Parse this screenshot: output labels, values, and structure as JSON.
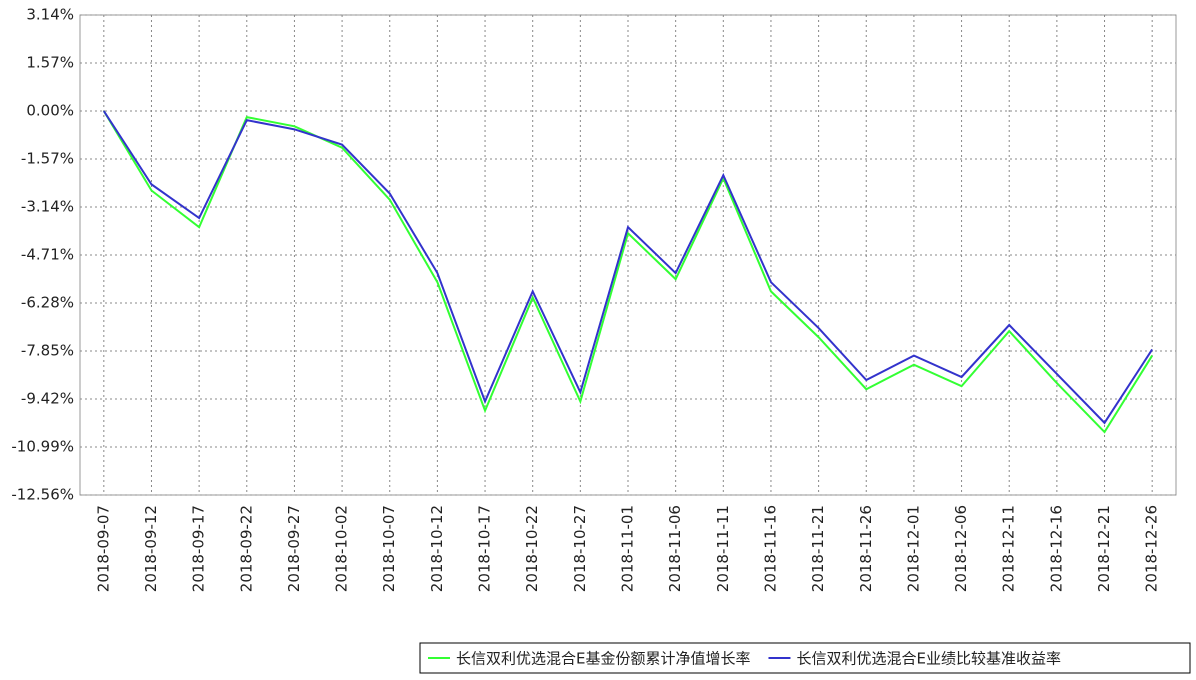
{
  "chart_data": {
    "type": "line",
    "categories": [
      "2018-09-07",
      "2018-09-12",
      "2018-09-17",
      "2018-09-22",
      "2018-09-27",
      "2018-10-02",
      "2018-10-07",
      "2018-10-12",
      "2018-10-17",
      "2018-10-22",
      "2018-10-27",
      "2018-11-01",
      "2018-11-06",
      "2018-11-11",
      "2018-11-16",
      "2018-11-21",
      "2018-11-26",
      "2018-12-01",
      "2018-12-06",
      "2018-12-11",
      "2018-12-16",
      "2018-12-21",
      "2018-12-26"
    ],
    "series": [
      {
        "name": "长信双利优选混合E基金份额累计净值增长率",
        "color": "#33ff33",
        "values": [
          0.0,
          -2.6,
          -3.8,
          -0.2,
          -0.5,
          -1.2,
          -2.9,
          -5.6,
          -9.8,
          -6.1,
          -9.5,
          -4.0,
          -5.5,
          -2.2,
          -5.9,
          -7.4,
          -9.1,
          -8.3,
          -9.0,
          -7.2,
          -8.9,
          -10.5,
          -8.0
        ]
      },
      {
        "name": "长信双利优选混合E业绩比较基准收益率",
        "color": "#3333cc",
        "values": [
          0.0,
          -2.4,
          -3.5,
          -0.3,
          -0.6,
          -1.1,
          -2.7,
          -5.3,
          -9.5,
          -5.9,
          -9.2,
          -3.8,
          -5.3,
          -2.1,
          -5.6,
          -7.1,
          -8.8,
          -8.0,
          -8.7,
          -7.0,
          -8.6,
          -10.2,
          -7.8
        ]
      }
    ],
    "ylim": [
      -12.56,
      3.14
    ],
    "yticks": [
      {
        "value": 3.14,
        "label": "3.14%"
      },
      {
        "value": 1.57,
        "label": "1.57%"
      },
      {
        "value": 0,
        "label": "0.00%"
      },
      {
        "value": -1.57,
        "label": "-1.57%"
      },
      {
        "value": -3.14,
        "label": "-3.14%"
      },
      {
        "value": -4.71,
        "label": "-4.71%"
      },
      {
        "value": -6.28,
        "label": "-6.28%"
      },
      {
        "value": -7.85,
        "label": "-7.85%"
      },
      {
        "value": -9.42,
        "label": "-9.42%"
      },
      {
        "value": -10.99,
        "label": "-10.99%"
      },
      {
        "value": -12.56,
        "label": "-12.56%"
      }
    ],
    "grid": true
  }
}
